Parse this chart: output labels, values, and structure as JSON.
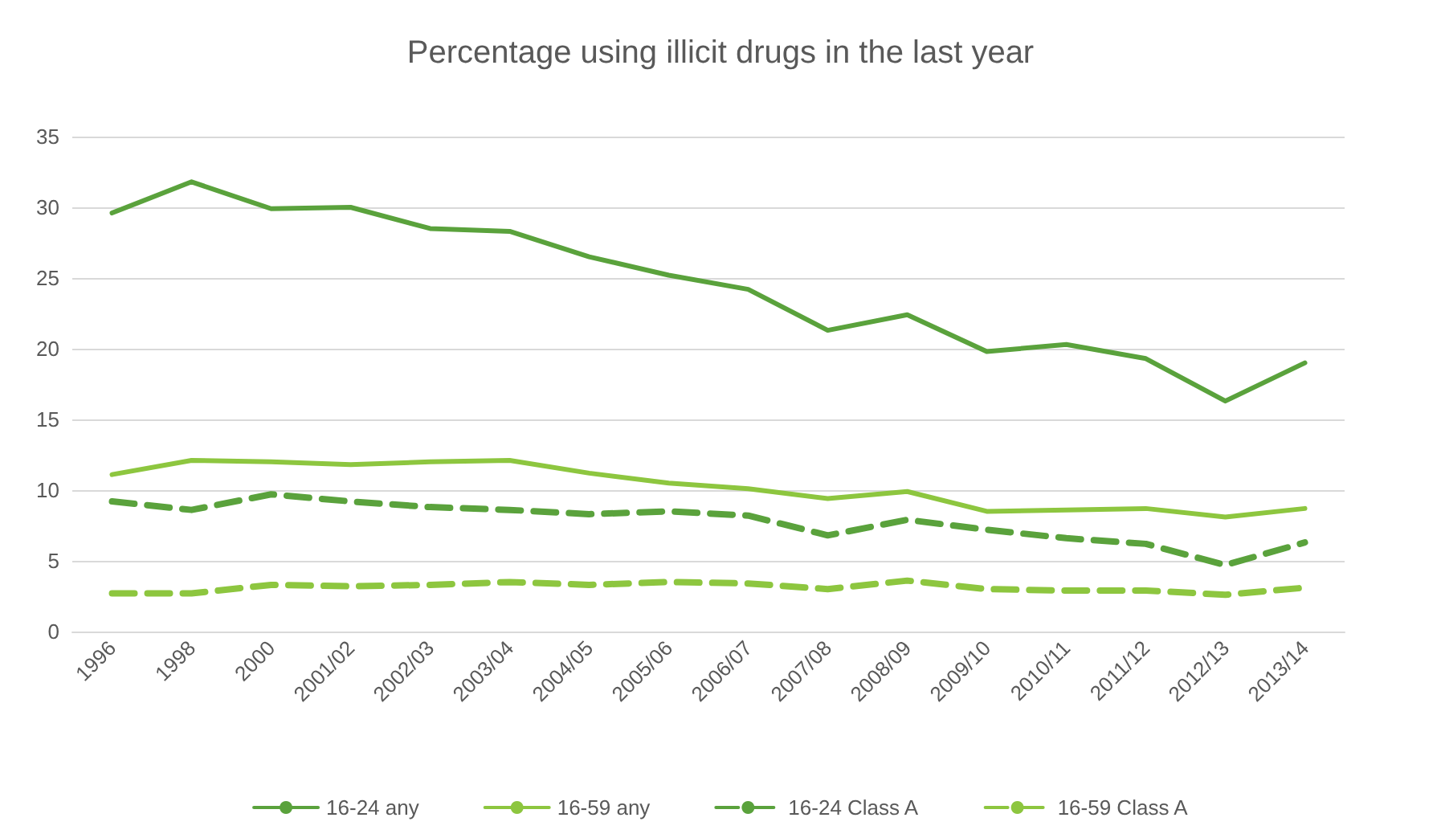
{
  "chart_data": {
    "type": "line",
    "title": "Percentage using illicit drugs in the last year",
    "categories": [
      "1996",
      "1998",
      "2000",
      "2001/02",
      "2002/03",
      "2003/04",
      "2004/05",
      "2005/06",
      "2006/07",
      "2007/08",
      "2008/09",
      "2009/10",
      "2010/11",
      "2011/12",
      "2012/13",
      "2013/14"
    ],
    "series": [
      {
        "name": "16-24 any",
        "color": "#5aa23c",
        "line_style": "solid",
        "values": [
          29.6,
          31.8,
          29.9,
          30.0,
          28.5,
          28.3,
          26.5,
          25.2,
          24.2,
          21.3,
          22.4,
          19.8,
          20.3,
          19.3,
          16.3,
          19.0
        ]
      },
      {
        "name": "16-59 any",
        "color": "#8dc63f",
        "line_style": "solid",
        "values": [
          11.1,
          12.1,
          12.0,
          11.8,
          12.0,
          12.1,
          11.2,
          10.5,
          10.1,
          9.4,
          9.9,
          8.5,
          8.6,
          8.7,
          8.1,
          8.7
        ]
      },
      {
        "name": "16-24 Class A",
        "color": "#5aa23c",
        "line_style": "dashed",
        "values": [
          9.2,
          8.6,
          9.7,
          9.2,
          8.8,
          8.6,
          8.3,
          8.5,
          8.2,
          6.8,
          7.9,
          7.2,
          6.6,
          6.2,
          4.7,
          6.3
        ]
      },
      {
        "name": "16-59 Class A",
        "color": "#8dc63f",
        "line_style": "dashed",
        "values": [
          2.7,
          2.7,
          3.3,
          3.2,
          3.3,
          3.5,
          3.3,
          3.5,
          3.4,
          3.0,
          3.6,
          3.0,
          2.9,
          2.9,
          2.6,
          3.1
        ]
      }
    ],
    "ylim": [
      0,
      35
    ],
    "yticks": [
      0,
      5,
      10,
      15,
      20,
      25,
      30,
      35
    ],
    "grid": "y",
    "legend": "bottom",
    "marker": "none"
  }
}
